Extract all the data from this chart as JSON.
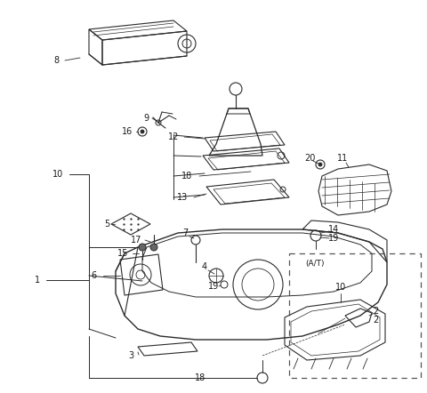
{
  "bg": "#ffffff",
  "lc": "#2a2a2a",
  "tc": "#1a1a1a",
  "fs": 7.0,
  "fig_w": 4.8,
  "fig_h": 4.42,
  "dpi": 100
}
